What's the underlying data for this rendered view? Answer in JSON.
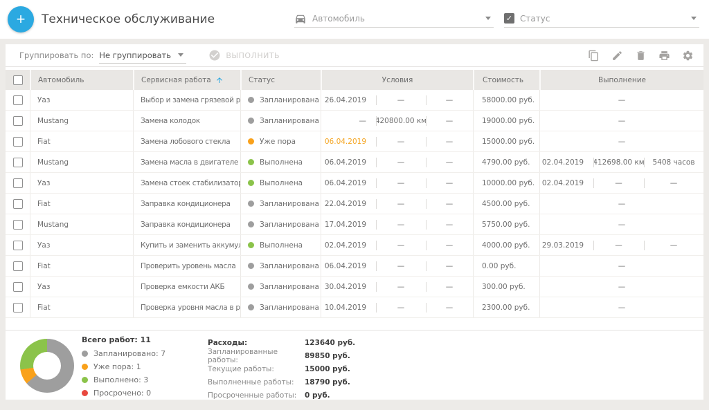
{
  "colors": {
    "accent_blue": "#2aa7e0",
    "status_planned": "#9e9e9e",
    "status_due": "#f9a11b",
    "status_done": "#8bc34a",
    "status_overdue": "#e8483f",
    "due_date_text": "#f5a623"
  },
  "header": {
    "title": "Техническое обслуживание",
    "add_button_label": "+",
    "vehicle_filter_label": "Автомобиль",
    "status_filter_label": "Статус"
  },
  "toolbar": {
    "group_by_label": "Группировать по:",
    "group_by_value": "Не группировать",
    "execute_label": "ВЫПОЛНИТЬ",
    "action_icons": [
      "copy",
      "edit",
      "delete",
      "print",
      "settings"
    ]
  },
  "table": {
    "headers": {
      "vehicle": "Автомобиль",
      "service_work": "Сервисная работа",
      "status": "Статус",
      "conditions": "Условия",
      "cost": "Стоимость",
      "completion": "Выполнение"
    },
    "sort": {
      "column": "service_work",
      "direction": "asc"
    },
    "rows": [
      {
        "vehicle": "Уаз",
        "work": "Выбор и замена грязевой резины",
        "status": "Запланирована",
        "status_type": "planned",
        "cond_date": "26.04.2019",
        "cond_date_due": false,
        "cond_km": "—",
        "cond_other": "—",
        "cost": "58000.00 руб.",
        "done": null
      },
      {
        "vehicle": "Mustang",
        "work": "Замена колодок",
        "status": "Запланирована",
        "status_type": "planned",
        "cond_date": "—",
        "cond_date_due": false,
        "cond_km": "420800.00 км",
        "cond_other": "—",
        "cost": "19000.00 руб.",
        "done": null
      },
      {
        "vehicle": "Fiat",
        "work": "Замена лобового стекла",
        "status": "Уже пора",
        "status_type": "due",
        "cond_date": "06.04.2019",
        "cond_date_due": true,
        "cond_km": "—",
        "cond_other": "—",
        "cost": "15000.00 руб.",
        "done": null
      },
      {
        "vehicle": "Mustang",
        "work": "Замена масла в двигателе",
        "status": "Выполнена",
        "status_type": "done",
        "cond_date": "06.04.2019",
        "cond_date_due": false,
        "cond_km": "—",
        "cond_other": "—",
        "cost": "4790.00 руб.",
        "done": {
          "date": "02.04.2019",
          "km": "412698.00 км",
          "hours": "5408 часов"
        }
      },
      {
        "vehicle": "Уаз",
        "work": "Замена стоек стабилизатора",
        "status": "Выполнена",
        "status_type": "done",
        "cond_date": "06.04.2019",
        "cond_date_due": false,
        "cond_km": "—",
        "cond_other": "—",
        "cost": "10000.00 руб.",
        "done": {
          "date": "02.04.2019",
          "km": "—",
          "hours": "—"
        }
      },
      {
        "vehicle": "Fiat",
        "work": "Заправка кондиционера",
        "status": "Запланирована",
        "status_type": "planned",
        "cond_date": "22.04.2019",
        "cond_date_due": false,
        "cond_km": "—",
        "cond_other": "—",
        "cost": "4500.00 руб.",
        "done": null
      },
      {
        "vehicle": "Mustang",
        "work": "Заправка кондиционера",
        "status": "Запланирована",
        "status_type": "planned",
        "cond_date": "17.04.2019",
        "cond_date_due": false,
        "cond_km": "—",
        "cond_other": "—",
        "cost": "5750.00 руб.",
        "done": null
      },
      {
        "vehicle": "Уаз",
        "work": "Купить и заменить аккумулятор",
        "status": "Выполнена",
        "status_type": "done",
        "cond_date": "02.04.2019",
        "cond_date_due": false,
        "cond_km": "—",
        "cond_other": "—",
        "cost": "4000.00 руб.",
        "done": {
          "date": "29.03.2019",
          "km": "—",
          "hours": "—"
        }
      },
      {
        "vehicle": "Fiat",
        "work": "Проверить уровень масла",
        "status": "Запланирована",
        "status_type": "planned",
        "cond_date": "06.04.2019",
        "cond_date_due": false,
        "cond_km": "—",
        "cond_other": "—",
        "cost": "0.00 руб.",
        "done": null
      },
      {
        "vehicle": "Уаз",
        "work": "Проверка емкости АКБ",
        "status": "Запланирована",
        "status_type": "planned",
        "cond_date": "30.04.2019",
        "cond_date_due": false,
        "cond_km": "—",
        "cond_other": "—",
        "cost": "300.00 руб.",
        "done": null
      },
      {
        "vehicle": "Fiat",
        "work": "Проверка уровня масла в редукторе",
        "status": "Запланирована",
        "status_type": "planned",
        "cond_date": "10.04.2019",
        "cond_date_due": false,
        "cond_km": "—",
        "cond_other": "—",
        "cost": "2300.00 руб.",
        "done": null
      }
    ]
  },
  "summary": {
    "total_label": "Всего работ:",
    "total_value": "11",
    "legend": [
      {
        "label": "Запланировано",
        "value": "7",
        "color": "#9e9e9e"
      },
      {
        "label": "Уже пора",
        "value": "1",
        "color": "#f9a11b"
      },
      {
        "label": "Выполнено",
        "value": "3",
        "color": "#8bc34a"
      },
      {
        "label": "Просрочено",
        "value": "0",
        "color": "#e8483f"
      }
    ],
    "expenses": [
      {
        "label": "Расходы:",
        "value": "123640 руб.",
        "bold": true
      },
      {
        "label": "Запланированные работы:",
        "value": "89850 руб.",
        "bold": false
      },
      {
        "label": "Текущие работы:",
        "value": "15000 руб.",
        "bold": false
      },
      {
        "label": "Выполненные работы:",
        "value": "18790 руб.",
        "bold": false
      },
      {
        "label": "Просроченные работы:",
        "value": "0 руб.",
        "bold": false
      }
    ]
  },
  "chart_data": {
    "type": "pie",
    "donut": true,
    "title": "Всего работ: 11",
    "labels": [
      "Запланировано",
      "Уже пора",
      "Выполнено",
      "Просрочено"
    ],
    "values": [
      7,
      1,
      3,
      0
    ],
    "colors": [
      "#9e9e9e",
      "#f9a11b",
      "#8bc34a",
      "#e8483f"
    ],
    "legend_position": "right"
  }
}
